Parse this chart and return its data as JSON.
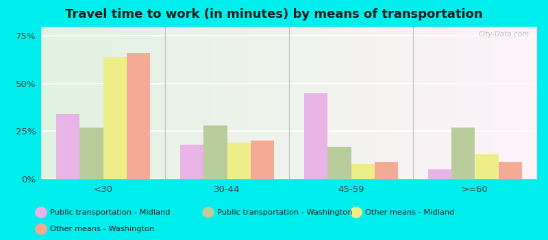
{
  "title": "Travel time to work (in minutes) by means of transportation",
  "categories": [
    "<30",
    "30-44",
    "45-59",
    ">=60"
  ],
  "series": {
    "Public transportation - Midland": [
      34,
      18,
      45,
      5
    ],
    "Public transportation - Washington": [
      27,
      28,
      17,
      27
    ],
    "Other means - Midland": [
      64,
      19,
      8,
      13
    ],
    "Other means - Washington": [
      66,
      20,
      9,
      9
    ]
  },
  "colors": {
    "Public transportation - Midland": "#e8b4e8",
    "Public transportation - Washington": "#b8cc9c",
    "Other means - Midland": "#eeee88",
    "Other means - Washington": "#f4aa94"
  },
  "ylim": [
    0,
    80
  ],
  "yticks": [
    0,
    25,
    50,
    75
  ],
  "ytick_labels": [
    "0%",
    "25%",
    "50%",
    "75%"
  ],
  "outer_bg": "#00eeee",
  "plot_bg": "#e8f4e0",
  "title_fontsize": 13,
  "bar_width": 0.19,
  "watermark": "City-Data.com"
}
